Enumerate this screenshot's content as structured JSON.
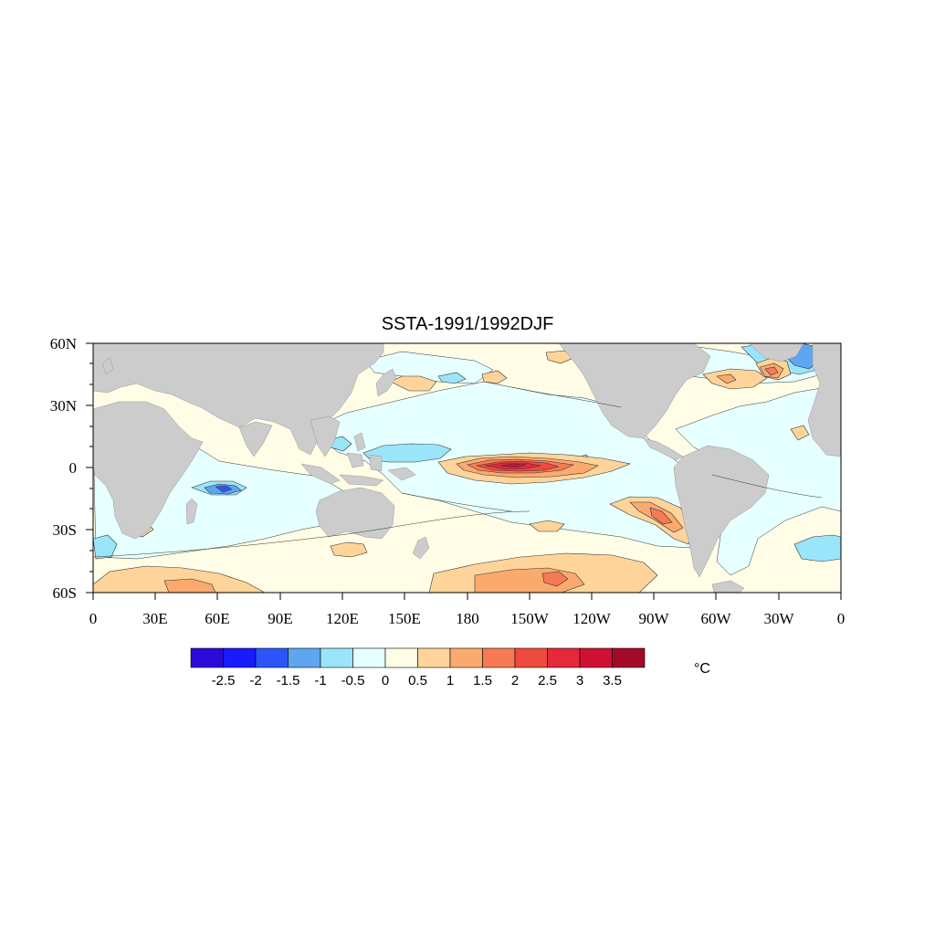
{
  "title": "SSTA-1991/1992DJF",
  "lat_ticks": [
    "60N",
    "30N",
    "0",
    "30S",
    "60S"
  ],
  "lon_ticks": [
    "0",
    "30E",
    "60E",
    "90E",
    "120E",
    "150E",
    "180",
    "150W",
    "120W",
    "90W",
    "60W",
    "30W",
    "0"
  ],
  "colorbar": {
    "colors": [
      "#2a0bd9",
      "#1a1aff",
      "#2c55f8",
      "#5ea6ef",
      "#9be5fb",
      "#e6ffff",
      "#fffde5",
      "#fed49a",
      "#fbaa6e",
      "#f77a54",
      "#ee4a3d",
      "#e6283b",
      "#d01134",
      "#a30a2a"
    ],
    "labels": [
      "-2.5",
      "-2",
      "-1.5",
      "-1",
      "-0.5",
      "0",
      "0.5",
      "1",
      "1.5",
      "2",
      "2.5",
      "3",
      "3.5"
    ],
    "units": "°C"
  },
  "land_color": "#cccccc"
}
